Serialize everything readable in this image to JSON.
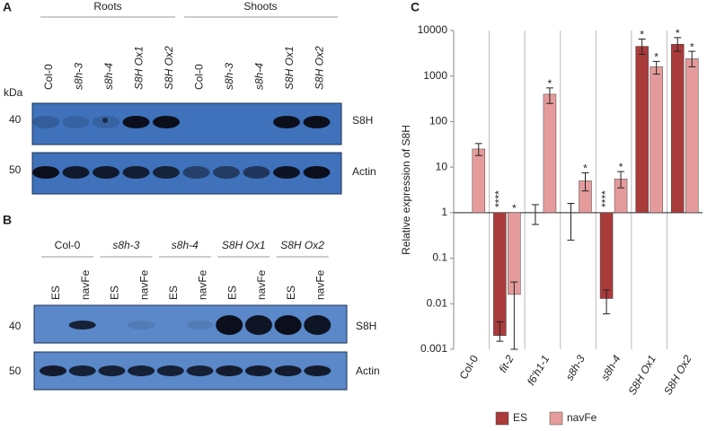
{
  "panels": {
    "a": {
      "label": "A",
      "groups": [
        "Roots",
        "Shoots"
      ],
      "lanes": [
        "Col-0",
        "s8h-3",
        "s8h-4",
        "S8H Ox1",
        "S8H Ox2",
        "Col-0",
        "s8h-3",
        "s8h-4",
        "S8H Ox1",
        "S8H Ox2"
      ],
      "unit": "kDa",
      "markers": [
        "40",
        "50"
      ],
      "blots": [
        "S8H",
        "Actin"
      ]
    },
    "b": {
      "label": "B",
      "groups": [
        "Col-0",
        "s8h-3",
        "s8h-4",
        "S8H Ox1",
        "S8H Ox2"
      ],
      "lanes": [
        "ES",
        "navFe",
        "ES",
        "navFe",
        "ES",
        "navFe",
        "ES",
        "navFe",
        "ES",
        "navFe"
      ],
      "markers": [
        "40",
        "50"
      ],
      "blots": [
        "S8H",
        "Actin"
      ]
    }
  },
  "chart_data": {
    "type": "bar",
    "panel_label": "C",
    "y_label": "Relative expression of S8H",
    "log_scale": true,
    "ylim": [
      0.001,
      10000
    ],
    "yticks": [
      0.001,
      0.01,
      0.1,
      1,
      10,
      100,
      1000,
      10000
    ],
    "categories": [
      "Col-0",
      "fit-2",
      "f6'h1-1",
      "s8h-3",
      "s8h-4",
      "S8H Ox1",
      "S8H Ox2"
    ],
    "legend": "bottom",
    "series": [
      {
        "name": "ES",
        "color": "#a93b3b",
        "values": [
          1,
          0.002,
          1,
          1,
          0.013,
          4500,
          5000
        ],
        "error_low": [
          null,
          0.0015,
          0.55,
          0.25,
          0.006,
          3000,
          3500
        ],
        "error_high": [
          null,
          0.004,
          1.5,
          1.6,
          0.02,
          6500,
          7000
        ],
        "significance": [
          null,
          "****",
          null,
          null,
          "****",
          "*",
          "*"
        ]
      },
      {
        "name": "navFe",
        "color": "#e59b9b",
        "values": [
          25,
          0.016,
          400,
          5,
          5.5,
          1600,
          2400
        ],
        "error_low": [
          18,
          0.001,
          250,
          3,
          3.5,
          1100,
          1600
        ],
        "error_high": [
          33,
          0.03,
          550,
          7.5,
          8,
          2100,
          3500
        ],
        "significance": [
          null,
          "*",
          "*",
          "*",
          "*",
          "*",
          "*"
        ]
      }
    ]
  }
}
